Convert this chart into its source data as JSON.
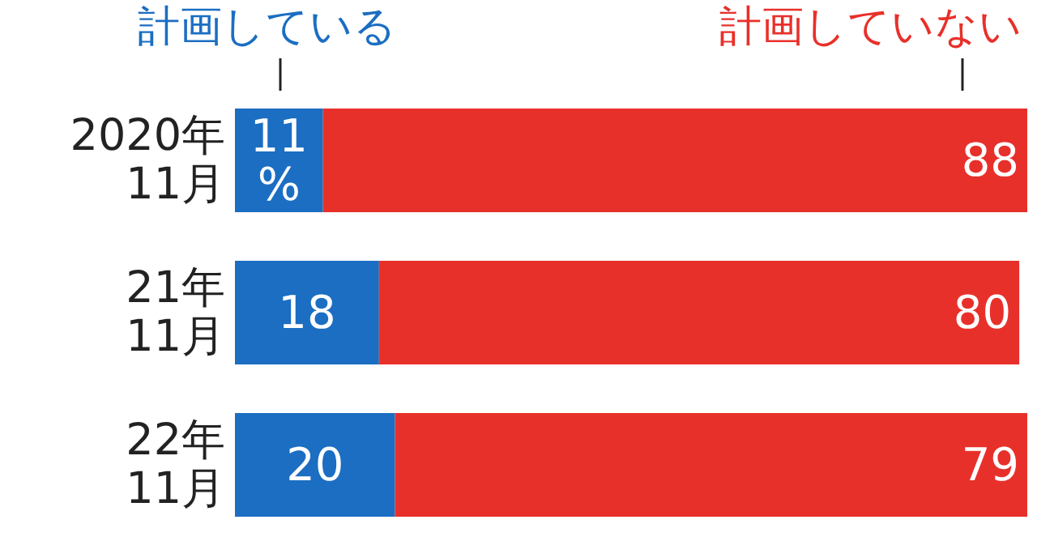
{
  "chart_data": {
    "type": "bar",
    "orientation": "horizontal",
    "stacked": true,
    "legend": false,
    "categories": [
      "2020年\n11月",
      "21年\n11月",
      "22年\n11月"
    ],
    "series": [
      {
        "name": "計画している",
        "color": "#1b6ec2",
        "values": [
          11,
          18,
          20
        ],
        "value_labels": [
          "11\n%",
          "18",
          "20"
        ]
      },
      {
        "name": "計画していない",
        "color": "#e8302a",
        "values": [
          88,
          80,
          79
        ],
        "value_labels": [
          "88",
          "80",
          "79"
        ]
      }
    ]
  }
}
